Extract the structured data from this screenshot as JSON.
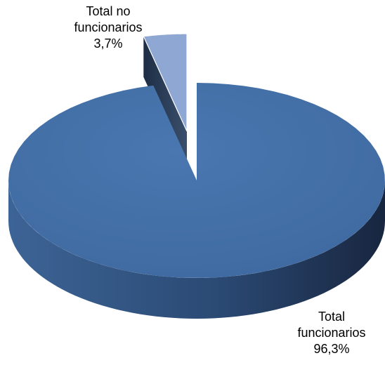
{
  "chart_data": {
    "type": "pie",
    "style": "3d-exploded",
    "slices": [
      {
        "label_lines": [
          "Total",
          "funcionarios",
          "96,3%"
        ],
        "value": 96.3,
        "color": "#4570A8"
      },
      {
        "label_lines": [
          "Total no",
          "funcionarios",
          "3,7%"
        ],
        "value": 3.7,
        "color": "#8FA8D3"
      }
    ]
  }
}
